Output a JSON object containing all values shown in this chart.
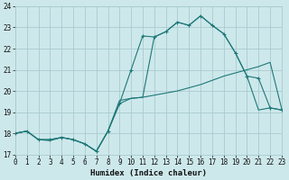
{
  "xlabel": "Humidex (Indice chaleur)",
  "xlim": [
    0,
    23
  ],
  "ylim": [
    17,
    24
  ],
  "yticks": [
    17,
    18,
    19,
    20,
    21,
    22,
    23,
    24
  ],
  "xticks": [
    0,
    1,
    2,
    3,
    4,
    5,
    6,
    7,
    8,
    9,
    10,
    11,
    12,
    13,
    14,
    15,
    16,
    17,
    18,
    19,
    20,
    21,
    22,
    23
  ],
  "bg_color": "#cde8eb",
  "grid_color": "#a8cbd0",
  "line_color": "#1e7878",
  "line1_x": [
    0,
    1,
    2,
    3,
    4,
    5,
    6,
    7,
    8,
    9,
    10,
    11,
    12,
    13,
    14,
    15,
    16,
    17,
    18,
    19,
    20,
    21,
    22,
    23
  ],
  "line1_y": [
    18.0,
    18.1,
    17.7,
    17.7,
    17.8,
    17.7,
    17.5,
    17.15,
    18.1,
    19.4,
    21.0,
    22.6,
    22.55,
    22.8,
    23.25,
    23.1,
    23.55,
    23.1,
    22.7,
    21.8,
    20.7,
    20.6,
    19.2,
    19.1
  ],
  "line2_x": [
    0,
    1,
    2,
    3,
    4,
    5,
    6,
    7,
    8,
    9,
    10,
    11,
    12,
    13,
    14,
    15,
    16,
    17,
    18,
    19,
    20,
    21,
    22,
    23
  ],
  "line2_y": [
    18.0,
    18.1,
    17.7,
    17.7,
    17.8,
    17.7,
    17.5,
    17.15,
    18.1,
    19.55,
    19.65,
    19.7,
    19.8,
    19.9,
    20.0,
    20.15,
    20.3,
    20.5,
    20.7,
    20.85,
    21.0,
    21.15,
    21.35,
    19.15
  ],
  "line3_x": [
    0,
    1,
    2,
    3,
    4,
    5,
    6,
    7,
    8,
    9,
    10,
    11,
    12,
    13,
    14,
    15,
    16,
    17,
    18,
    19,
    20,
    21,
    22,
    23
  ],
  "line3_y": [
    18.0,
    18.1,
    17.7,
    17.65,
    17.8,
    17.7,
    17.5,
    17.15,
    18.1,
    19.4,
    19.65,
    19.7,
    22.55,
    22.8,
    23.25,
    23.1,
    23.55,
    23.1,
    22.7,
    21.8,
    20.7,
    19.1,
    19.2,
    19.1
  ]
}
